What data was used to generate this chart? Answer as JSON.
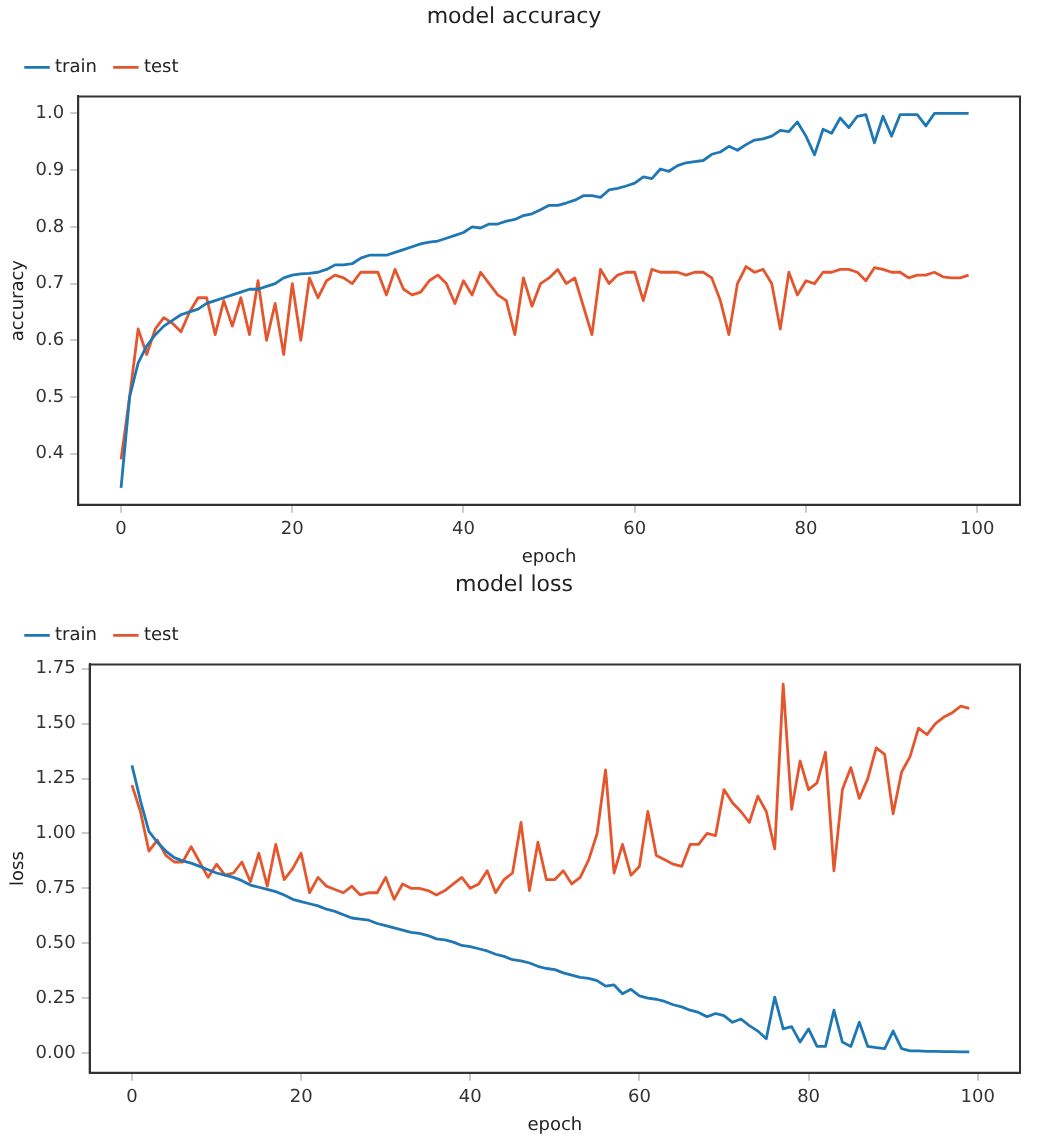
{
  "chart_data": [
    {
      "type": "line",
      "title": "model accuracy",
      "xlabel": "epoch",
      "ylabel": "accuracy",
      "legend": "top left",
      "grid": false,
      "marker": "none",
      "line_style": "solid",
      "x": [
        0,
        1,
        2,
        3,
        4,
        5,
        6,
        7,
        8,
        9,
        10,
        11,
        12,
        13,
        14,
        15,
        16,
        17,
        18,
        19,
        20,
        21,
        22,
        23,
        24,
        25,
        26,
        27,
        28,
        29,
        30,
        31,
        32,
        33,
        34,
        35,
        36,
        37,
        38,
        39,
        40,
        41,
        42,
        43,
        44,
        45,
        46,
        47,
        48,
        49,
        50,
        51,
        52,
        53,
        54,
        55,
        56,
        57,
        58,
        59,
        60,
        61,
        62,
        63,
        64,
        65,
        66,
        67,
        68,
        69,
        70,
        71,
        72,
        73,
        74,
        75,
        76,
        77,
        78,
        79,
        80,
        81,
        82,
        83,
        84,
        85,
        86,
        87,
        88,
        89,
        90,
        91,
        92,
        93,
        94,
        95,
        96,
        97,
        98,
        99
      ],
      "xlim": [
        -5,
        105
      ],
      "xticks": [
        0,
        20,
        40,
        60,
        80,
        100
      ],
      "ylim": [
        0.31,
        1.03
      ],
      "yticks": [
        0.4,
        0.5,
        0.6,
        0.7,
        0.8,
        0.9,
        {
          "value": 1,
          "label": "1.0"
        }
      ],
      "series": [
        {
          "name": "train",
          "color": "#1f77b4",
          "values": [
            0.34,
            0.5,
            0.56,
            0.59,
            0.61,
            0.625,
            0.635,
            0.645,
            0.65,
            0.655,
            0.665,
            0.67,
            0.675,
            0.68,
            0.685,
            0.69,
            0.69,
            0.695,
            0.7,
            0.71,
            0.715,
            0.717,
            0.718,
            0.72,
            0.725,
            0.733,
            0.733,
            0.735,
            0.745,
            0.75,
            0.75,
            0.75,
            0.755,
            0.76,
            0.765,
            0.77,
            0.773,
            0.775,
            0.78,
            0.785,
            0.79,
            0.8,
            0.798,
            0.805,
            0.805,
            0.81,
            0.813,
            0.82,
            0.823,
            0.83,
            0.838,
            0.838,
            0.842,
            0.847,
            0.855,
            0.855,
            0.852,
            0.865,
            0.868,
            0.872,
            0.877,
            0.888,
            0.885,
            0.902,
            0.898,
            0.908,
            0.913,
            0.915,
            0.917,
            0.928,
            0.932,
            0.942,
            0.935,
            0.945,
            0.953,
            0.955,
            0.96,
            0.97,
            0.968,
            0.985,
            0.96,
            0.927,
            0.972,
            0.965,
            0.992,
            0.975,
            0.995,
            0.998,
            0.948,
            0.995,
            0.96,
            0.998,
            0.998,
            0.998,
            0.978,
            1,
            1,
            1,
            1,
            1
          ]
        },
        {
          "name": "test",
          "color": "#e4572e",
          "values": [
            0.39,
            0.5,
            0.62,
            0.575,
            0.62,
            0.64,
            0.63,
            0.615,
            0.65,
            0.675,
            0.675,
            0.61,
            0.67,
            0.625,
            0.675,
            0.61,
            0.705,
            0.6,
            0.665,
            0.575,
            0.7,
            0.6,
            0.71,
            0.675,
            0.705,
            0.715,
            0.71,
            0.7,
            0.72,
            0.72,
            0.72,
            0.68,
            0.725,
            0.69,
            0.68,
            0.685,
            0.705,
            0.715,
            0.7,
            0.665,
            0.705,
            0.68,
            0.72,
            0.7,
            0.68,
            0.67,
            0.61,
            0.71,
            0.66,
            0.7,
            0.71,
            0.725,
            0.7,
            0.71,
            0.66,
            0.61,
            0.725,
            0.7,
            0.715,
            0.72,
            0.72,
            0.67,
            0.725,
            0.72,
            0.72,
            0.72,
            0.715,
            0.72,
            0.72,
            0.71,
            0.67,
            0.61,
            0.7,
            0.73,
            0.72,
            0.725,
            0.7,
            0.62,
            0.72,
            0.68,
            0.705,
            0.7,
            0.72,
            0.72,
            0.725,
            0.725,
            0.72,
            0.705,
            0.728,
            0.725,
            0.72,
            0.72,
            0.71,
            0.715,
            0.715,
            0.72,
            0.712,
            0.71,
            0.71,
            0.715
          ]
        }
      ]
    },
    {
      "type": "line",
      "title": "model loss",
      "xlabel": "epoch",
      "ylabel": "loss",
      "legend": "top left",
      "grid": false,
      "marker": "none",
      "line_style": "solid",
      "x": [
        0,
        1,
        2,
        3,
        4,
        5,
        6,
        7,
        8,
        9,
        10,
        11,
        12,
        13,
        14,
        15,
        16,
        17,
        18,
        19,
        20,
        21,
        22,
        23,
        24,
        25,
        26,
        27,
        28,
        29,
        30,
        31,
        32,
        33,
        34,
        35,
        36,
        37,
        38,
        39,
        40,
        41,
        42,
        43,
        44,
        45,
        46,
        47,
        48,
        49,
        50,
        51,
        52,
        53,
        54,
        55,
        56,
        57,
        58,
        59,
        60,
        61,
        62,
        63,
        64,
        65,
        66,
        67,
        68,
        69,
        70,
        71,
        72,
        73,
        74,
        75,
        76,
        77,
        78,
        79,
        80,
        81,
        82,
        83,
        84,
        85,
        86,
        87,
        88,
        89,
        90,
        91,
        92,
        93,
        94,
        95,
        96,
        97,
        98,
        99
      ],
      "xlim": [
        -5,
        105
      ],
      "xticks": [
        0,
        20,
        40,
        60,
        80,
        100
      ],
      "ylim": [
        -0.09,
        1.77
      ],
      "yticks": [
        {
          "value": 0,
          "label": "0.00"
        },
        {
          "value": 0.25,
          "label": "0.25"
        },
        {
          "value": 0.5,
          "label": "0.50"
        },
        {
          "value": 0.75,
          "label": "0.75"
        },
        {
          "value": 1,
          "label": "1.00"
        },
        {
          "value": 1.25,
          "label": "1.25"
        },
        {
          "value": 1.5,
          "label": "1.50"
        },
        {
          "value": 1.75,
          "label": "1.75"
        }
      ],
      "series": [
        {
          "name": "train",
          "color": "#1f77b4",
          "values": [
            1.31,
            1.15,
            1.01,
            0.96,
            0.92,
            0.89,
            0.875,
            0.865,
            0.85,
            0.835,
            0.82,
            0.81,
            0.8,
            0.785,
            0.765,
            0.755,
            0.745,
            0.735,
            0.72,
            0.7,
            0.69,
            0.68,
            0.67,
            0.655,
            0.645,
            0.63,
            0.615,
            0.61,
            0.605,
            0.59,
            0.58,
            0.57,
            0.56,
            0.55,
            0.545,
            0.535,
            0.52,
            0.515,
            0.505,
            0.49,
            0.485,
            0.475,
            0.465,
            0.45,
            0.44,
            0.425,
            0.42,
            0.41,
            0.395,
            0.385,
            0.38,
            0.365,
            0.355,
            0.345,
            0.34,
            0.33,
            0.305,
            0.31,
            0.27,
            0.29,
            0.26,
            0.25,
            0.245,
            0.235,
            0.22,
            0.21,
            0.195,
            0.185,
            0.165,
            0.18,
            0.17,
            0.14,
            0.155,
            0.125,
            0.1,
            0.065,
            0.255,
            0.11,
            0.12,
            0.05,
            0.11,
            0.03,
            0.03,
            0.195,
            0.05,
            0.03,
            0.14,
            0.03,
            0.025,
            0.02,
            0.1,
            0.02,
            0.01,
            0.01,
            0.008,
            0.008,
            0.006,
            0.006,
            0.005,
            0.005
          ]
        },
        {
          "name": "test",
          "color": "#e4572e",
          "values": [
            1.22,
            1.1,
            0.92,
            0.97,
            0.9,
            0.87,
            0.87,
            0.94,
            0.87,
            0.8,
            0.86,
            0.81,
            0.82,
            0.87,
            0.78,
            0.91,
            0.76,
            0.95,
            0.79,
            0.84,
            0.91,
            0.73,
            0.8,
            0.76,
            0.745,
            0.73,
            0.76,
            0.72,
            0.73,
            0.73,
            0.8,
            0.7,
            0.77,
            0.75,
            0.75,
            0.74,
            0.72,
            0.74,
            0.77,
            0.8,
            0.75,
            0.77,
            0.83,
            0.73,
            0.79,
            0.82,
            1.05,
            0.74,
            0.96,
            0.79,
            0.79,
            0.83,
            0.77,
            0.8,
            0.88,
            1,
            1.29,
            0.82,
            0.95,
            0.81,
            0.85,
            1.1,
            0.9,
            0.88,
            0.86,
            0.85,
            0.95,
            0.95,
            1,
            0.99,
            1.2,
            1.14,
            1.1,
            1.05,
            1.17,
            1.1,
            0.93,
            1.68,
            1.11,
            1.33,
            1.2,
            1.23,
            1.37,
            0.83,
            1.2,
            1.3,
            1.16,
            1.25,
            1.39,
            1.36,
            1.09,
            1.28,
            1.35,
            1.48,
            1.45,
            1.5,
            1.53,
            1.55,
            1.58,
            1.57
          ]
        }
      ]
    }
  ]
}
